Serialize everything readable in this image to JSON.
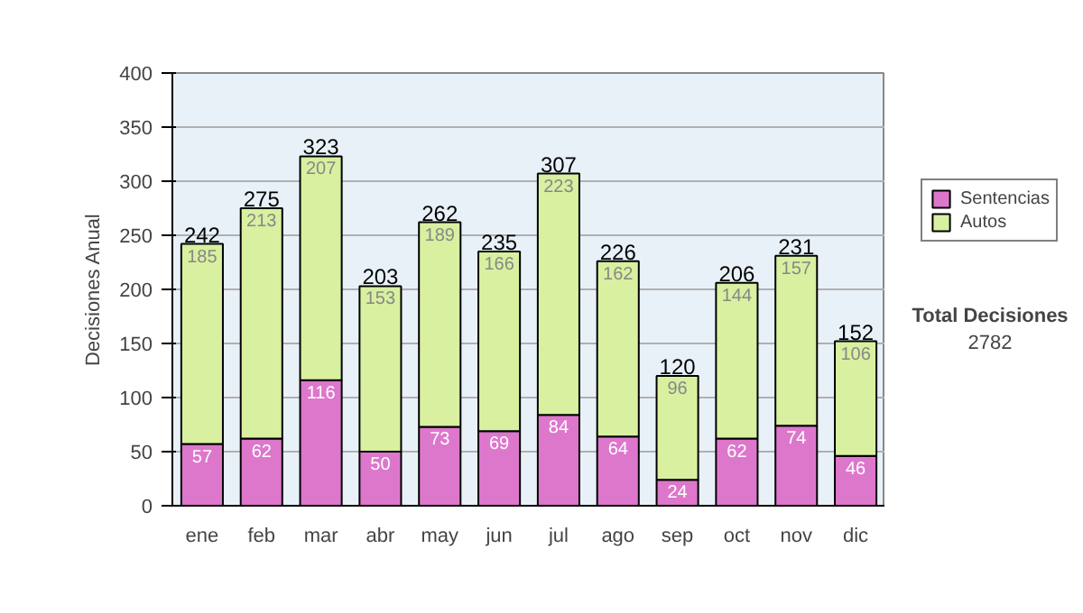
{
  "chart_data": {
    "type": "bar",
    "stacked": true,
    "ylabel": "Decisiones Anual",
    "categories": [
      "ene",
      "feb",
      "mar",
      "abr",
      "may",
      "jun",
      "jul",
      "ago",
      "sep",
      "oct",
      "nov",
      "dic"
    ],
    "series": [
      {
        "name": "Sentencias",
        "color": "#dd77cc",
        "values": [
          57,
          62,
          116,
          50,
          73,
          69,
          84,
          64,
          24,
          62,
          74,
          46
        ]
      },
      {
        "name": "Autos",
        "color": "#d8f0a0",
        "values": [
          185,
          213,
          207,
          153,
          189,
          166,
          223,
          162,
          96,
          144,
          157,
          106
        ]
      }
    ],
    "totals": [
      "242",
      "275",
      "323",
      "203",
      "262",
      "235",
      "307",
      "226",
      "120",
      "206",
      "231",
      "152"
    ],
    "data_labels": true,
    "ylim": [
      0,
      400
    ],
    "yticks": [
      0,
      50,
      100,
      150,
      200,
      250,
      300,
      350,
      400
    ],
    "grid": "y",
    "legend": "right",
    "annotations": [
      "Total Decisiones",
      "2782"
    ]
  }
}
